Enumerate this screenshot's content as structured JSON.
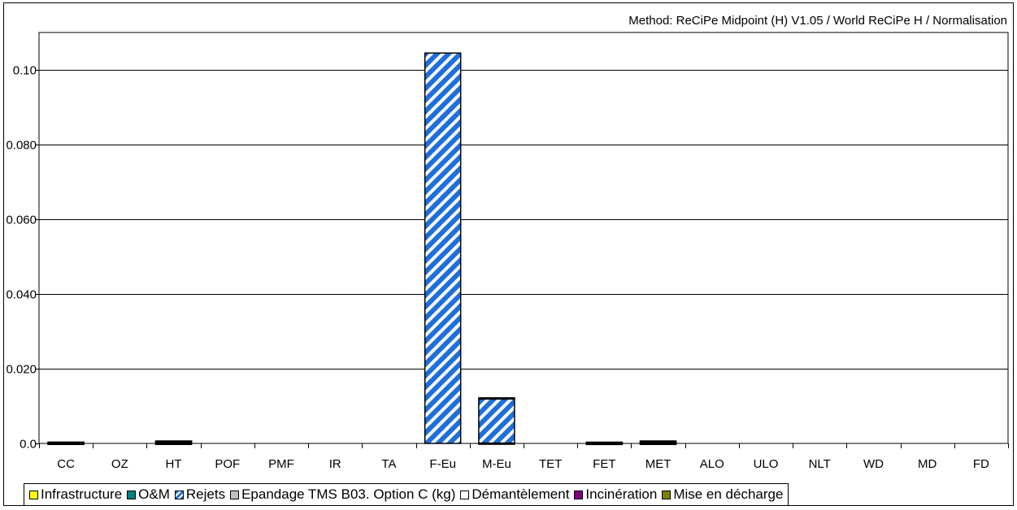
{
  "method_label": "Method: ReCiPe Midpoint (H) V1.05 /  World ReCiPe H / Normalisation",
  "chart_data": {
    "type": "bar",
    "stacked": true,
    "categories": [
      "CC",
      "OZ",
      "HT",
      "POF",
      "PMF",
      "IR",
      "TA",
      "F-Eu",
      "M-Eu",
      "TET",
      "FET",
      "MET",
      "ALO",
      "ULO",
      "NLT",
      "WD",
      "MD",
      "FD"
    ],
    "y_ticks": [
      "0.0",
      "0.020",
      "0.040",
      "0.060",
      "0.080",
      "0.10"
    ],
    "ylim": [
      0,
      0.11
    ],
    "grid": true,
    "legend_position": "bottom",
    "series": [
      {
        "name": "Infrastructure",
        "color": "#ffff00",
        "pattern": "solid",
        "values": [
          5e-05,
          0,
          5e-05,
          0,
          0,
          0,
          0,
          0,
          0,
          0,
          3e-05,
          5e-05,
          0,
          0,
          0,
          0,
          0,
          0
        ]
      },
      {
        "name": "O&M",
        "color": "#008080",
        "pattern": "solid",
        "values": [
          0.0001,
          0,
          0.0004,
          0,
          0,
          0,
          0,
          0,
          0.0001,
          0,
          0.0001,
          0.0003,
          0,
          0,
          0,
          0,
          0,
          0
        ]
      },
      {
        "name": "Rejets",
        "color": "#1e6fd9",
        "pattern": "diagonal-stripes",
        "values": [
          0,
          0,
          0,
          0,
          0,
          0,
          0,
          0.1045,
          0.0118,
          0,
          0,
          0,
          0,
          0,
          0,
          0,
          0,
          0
        ]
      },
      {
        "name": "Epandage TMS B03. Option C (kg)",
        "color": "#c0c0c0",
        "pattern": "solid",
        "values": [
          0.0001,
          0,
          0.0001,
          0,
          0,
          0,
          0,
          0,
          0,
          0,
          0.0001,
          0.0001,
          0,
          0,
          0,
          0,
          0,
          0
        ]
      },
      {
        "name": "Démantèlement",
        "color": "#ffffff",
        "pattern": "solid",
        "values": [
          0,
          0,
          0,
          0,
          0,
          0,
          0,
          0,
          0,
          0,
          0,
          0,
          0,
          0,
          0,
          0,
          0,
          0
        ]
      },
      {
        "name": "Incinération",
        "color": "#800080",
        "pattern": "solid",
        "values": [
          0,
          0,
          0,
          0,
          0,
          0,
          0,
          0,
          0,
          0,
          0,
          0,
          0,
          0,
          0,
          0,
          0,
          0
        ]
      },
      {
        "name": "Mise en décharge",
        "color": "#808000",
        "pattern": "solid",
        "values": [
          0.0001,
          0,
          0.0001,
          0,
          0,
          0,
          0,
          0,
          0.0003,
          0,
          0.0001,
          0.0002,
          0,
          0,
          0,
          0,
          0,
          0
        ]
      }
    ]
  }
}
